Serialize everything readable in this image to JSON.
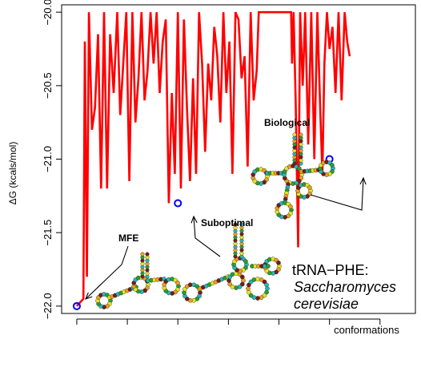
{
  "chart_data": {
    "type": "line",
    "ylabel": "ΔG (kcals/mol)",
    "xlabel": "conformations",
    "ylim": [
      -22.05,
      -19.95
    ],
    "y_ticks": [
      -20.0,
      -20.5,
      -21.0,
      -21.5,
      -22.0
    ],
    "y_tick_labels": [
      "−20.0",
      "−20.5",
      "−21.0",
      "−21.5",
      "−22.0"
    ],
    "x_ticks": [
      1,
      2,
      3,
      4,
      5,
      6,
      7
    ],
    "xlim": [
      0.7,
      7.7
    ],
    "grid": false,
    "series": [
      {
        "color": "#ff0000",
        "x": [
          1.0,
          1.13,
          1.16,
          1.2,
          1.24,
          1.3,
          1.36,
          1.42,
          1.48,
          1.54,
          1.6,
          1.66,
          1.73,
          1.8,
          1.86,
          1.92,
          1.98,
          2.04,
          2.1,
          2.16,
          2.22,
          2.28,
          2.34,
          2.4,
          2.46,
          2.52,
          2.58,
          2.64,
          2.7,
          2.76,
          2.82,
          2.88,
          2.94,
          3.0,
          3.06,
          3.12,
          3.18,
          3.24,
          3.3,
          3.36,
          3.42,
          3.48,
          3.54,
          3.6,
          3.66,
          3.72,
          3.78,
          3.84,
          3.9,
          3.96,
          4.02,
          4.08,
          4.14,
          4.2,
          4.26,
          4.32,
          4.38,
          4.44,
          4.5,
          4.56,
          4.6,
          5.24,
          5.26,
          5.29,
          5.33,
          5.38,
          5.42,
          5.47,
          5.52,
          5.58,
          5.64,
          5.7,
          5.76,
          5.82,
          5.86,
          5.9,
          5.95,
          6.0,
          6.06,
          6.12,
          6.18,
          6.24,
          6.3,
          6.35,
          6.4
        ],
        "y": [
          -22.0,
          -21.95,
          -20.2,
          -21.8,
          -20.0,
          -20.8,
          -20.65,
          -20.15,
          -21.2,
          -20.0,
          -21.2,
          -20.15,
          -20.55,
          -20.0,
          -20.7,
          -20.35,
          -20.0,
          -21.15,
          -20.0,
          -20.75,
          -20.45,
          -20.0,
          -20.6,
          -20.4,
          -20.0,
          -20.35,
          -20.0,
          -20.55,
          -20.2,
          -20.05,
          -21.3,
          -20.55,
          -21.1,
          -20.0,
          -21.2,
          -20.05,
          -20.65,
          -21.15,
          -20.45,
          -21.1,
          -20.0,
          -20.35,
          -20.95,
          -20.35,
          -20.6,
          -20.1,
          -20.3,
          -20.75,
          -20.0,
          -20.55,
          -20.2,
          -21.1,
          -20.0,
          -20.05,
          -20.45,
          -20.3,
          -21.05,
          -20.0,
          -20.6,
          -20.4,
          -20.0,
          -20.0,
          -20.35,
          -20.0,
          -20.6,
          -21.6,
          -20.0,
          -20.5,
          -20.0,
          -20.9,
          -20.0,
          -21.0,
          -20.0,
          -20.7,
          -21.1,
          -20.35,
          -20.0,
          -20.25,
          -20.1,
          -20.55,
          -20.0,
          -20.6,
          -20.0,
          -20.2,
          -20.3
        ]
      }
    ],
    "highlight_points": [
      {
        "name": "MFE",
        "x": 1.0,
        "y": -22.0,
        "color": "#0000ff"
      },
      {
        "name": "Suboptimal",
        "x": 3.0,
        "y": -21.3,
        "color": "#0000ff"
      },
      {
        "name": "Biological",
        "x": 6.0,
        "y": -21.0,
        "color": "#0000ff"
      }
    ],
    "annotations": {
      "mfe": "MFE",
      "suboptimal": "Suboptimal",
      "biological": "Biological",
      "organism_line1": "tRNA−PHE:",
      "organism_line2": "Saccharomyces",
      "organism_line3": "cerevisiae"
    }
  }
}
